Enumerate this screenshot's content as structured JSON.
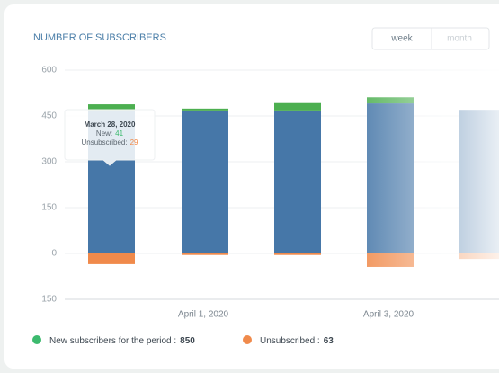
{
  "chart_data": {
    "type": "stacked_bar",
    "title": "NUMBER OF SUBSCRIBERS",
    "buttons": [
      "week",
      "month"
    ],
    "categories": [
      null,
      "April 1, 2020",
      null,
      "April 3, 2020",
      null
    ],
    "series": [
      {
        "color": "#4677a8",
        "values": [
          468,
          468,
          468,
          491,
          470
        ]
      },
      {
        "name": "New subscribers for the period :",
        "total": 850,
        "color": "#4caf50",
        "values": [
          20,
          6,
          24,
          20,
          0
        ]
      },
      {
        "name": "Unsubscribed :",
        "total": 63,
        "color": "#f08a4b",
        "values": [
          -35,
          -5,
          -5,
          -44,
          -18
        ]
      }
    ],
    "legend_colors": [
      "#3cba6e",
      "#f08a4b"
    ],
    "ylim": [
      -150,
      600
    ],
    "yticks": [
      600,
      450,
      300,
      150,
      0,
      {
        "value": -150,
        "label": "150"
      }
    ],
    "grid": true,
    "tooltip": {
      "title": "March 28, 2020",
      "items": [
        {
          "label": "New:",
          "value": 41,
          "color": "#3cba6e"
        },
        {
          "label": "Unsubscribed:",
          "value": 29,
          "color": "#f08a4b"
        }
      ]
    }
  }
}
